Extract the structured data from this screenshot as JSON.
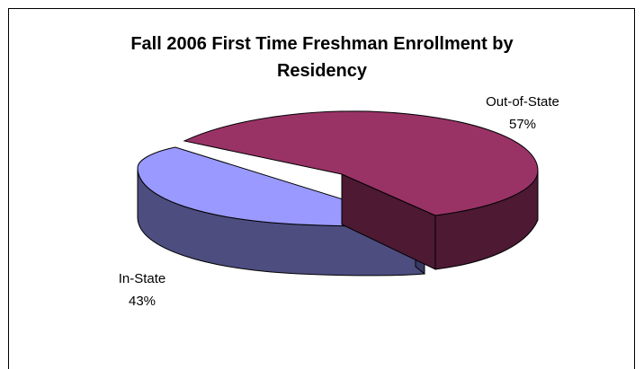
{
  "chart_data": {
    "type": "pie",
    "title_line1": "Fall 2006 First Time Freshman Enrollment by",
    "title_line2": "Residency",
    "slices": [
      {
        "label": "Out-of-State",
        "percent_label": "57%",
        "value": 57,
        "color": "#993366",
        "side_color": "#4d1933"
      },
      {
        "label": "In-State",
        "percent_label": "43%",
        "value": 43,
        "color": "#9999ff",
        "side_color": "#4d4d80"
      }
    ],
    "style": "3d-exploded"
  }
}
